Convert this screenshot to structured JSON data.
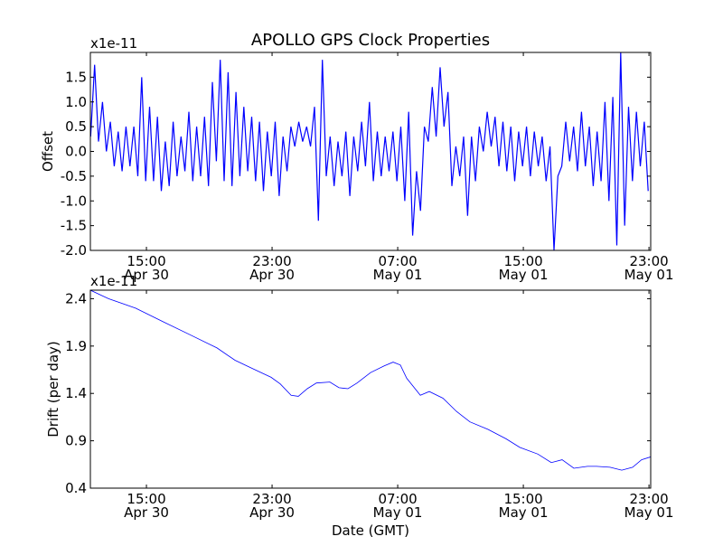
{
  "chart_data": [
    {
      "type": "line",
      "title": "APOLLO GPS Clock Properties",
      "xlabel": "",
      "ylabel": "Offset",
      "y_multiplier": "x1e-11",
      "ylim": [
        -2.0,
        2.0
      ],
      "xlim_hours_since_apr30": [
        11.43,
        47.11
      ],
      "y_ticks": [
        -2.0,
        -1.5,
        -1.0,
        -0.5,
        0.0,
        0.5,
        1.0,
        1.5
      ],
      "y_tick_labels": [
        "-2.0",
        "-1.5",
        "-1.0",
        "-0.5",
        "0.0",
        "0.5",
        "1.0",
        "1.5"
      ],
      "x_ticks_hours": [
        15,
        23,
        31,
        39,
        47
      ],
      "x_tick_labels": [
        [
          "15:00",
          "Apr 30"
        ],
        [
          "23:00",
          "Apr 30"
        ],
        [
          "07:00",
          "May 01"
        ],
        [
          "15:00",
          "May 01"
        ],
        [
          "23:00",
          "May 01"
        ]
      ],
      "color": "#0000ff",
      "series": [
        {
          "name": "Offset",
          "x_start_hours": 11.45,
          "x_step_hours": 0.25,
          "values": [
            0.3,
            1.75,
            0.2,
            1.0,
            0.0,
            0.6,
            -0.3,
            0.4,
            -0.4,
            0.5,
            -0.3,
            0.5,
            -0.5,
            1.5,
            -0.6,
            0.9,
            -0.6,
            0.7,
            -0.8,
            0.2,
            -0.7,
            0.6,
            -0.5,
            0.3,
            -0.4,
            0.8,
            -0.6,
            0.5,
            -0.5,
            0.7,
            -0.7,
            1.4,
            -0.2,
            1.85,
            -0.6,
            1.6,
            -0.7,
            1.2,
            -0.5,
            0.9,
            -0.4,
            0.7,
            -0.6,
            0.6,
            -0.8,
            0.4,
            -0.5,
            0.6,
            -0.9,
            0.3,
            -0.4,
            0.5,
            0.1,
            0.6,
            0.2,
            0.5,
            0.1,
            0.9,
            -1.4,
            1.85,
            -0.5,
            0.3,
            -0.7,
            0.2,
            -0.5,
            0.4,
            -0.9,
            0.3,
            -0.4,
            0.6,
            -0.3,
            1.0,
            -0.6,
            0.4,
            -0.5,
            0.3,
            -0.4,
            0.4,
            -0.6,
            0.5,
            -1.0,
            0.8,
            -1.7,
            -0.4,
            -1.2,
            0.5,
            0.2,
            1.3,
            0.3,
            1.7,
            0.5,
            1.2,
            -0.7,
            0.1,
            -0.5,
            0.3,
            -1.3,
            0.3,
            -0.6,
            0.5,
            0.0,
            0.8,
            0.1,
            0.7,
            -0.3,
            0.6,
            -0.4,
            0.5,
            -0.6,
            0.4,
            -0.3,
            0.5,
            -0.5,
            0.4,
            -0.3,
            0.3,
            -0.6,
            0.1,
            -2.0,
            -0.5,
            -0.3,
            0.6,
            -0.2,
            0.5,
            -0.4,
            0.8,
            -0.3,
            0.5,
            -0.7,
            0.4,
            -0.6,
            1.0,
            -1.0,
            1.1,
            -1.9,
            2.0,
            -1.5,
            0.9,
            -0.6,
            0.8,
            -0.3,
            0.6,
            -0.8
          ]
        }
      ]
    },
    {
      "type": "line",
      "title": "",
      "xlabel": "Date (GMT)",
      "ylabel": "Drift (per day)",
      "y_multiplier": "x1e-11",
      "ylim": [
        0.4,
        2.49
      ],
      "xlim_hours_since_apr30": [
        11.43,
        47.11
      ],
      "y_ticks": [
        0.4,
        0.9,
        1.4,
        1.9,
        2.4
      ],
      "y_tick_labels": [
        "0.4",
        "0.9",
        "1.4",
        "1.9",
        "2.4"
      ],
      "x_ticks_hours": [
        15,
        23,
        31,
        39,
        47
      ],
      "x_tick_labels": [
        [
          "15:00",
          "Apr 30"
        ],
        [
          "23:00",
          "Apr 30"
        ],
        [
          "07:00",
          "May 01"
        ],
        [
          "15:00",
          "May 01"
        ],
        [
          "23:00",
          "May 01"
        ]
      ],
      "color": "#0000ff",
      "series": [
        {
          "name": "Drift",
          "x_hours": [
            11.43,
            12.58,
            14.31,
            16.03,
            17.76,
            19.49,
            20.64,
            21.79,
            22.94,
            23.52,
            24.21,
            24.67,
            25.24,
            25.82,
            26.68,
            27.26,
            27.83,
            28.41,
            29.27,
            30.14,
            30.71,
            31.17,
            31.57,
            32.44,
            33.01,
            33.88,
            34.74,
            35.6,
            36.75,
            37.91,
            38.77,
            39.92,
            40.78,
            41.47,
            42.22,
            43.08,
            43.66,
            44.52,
            45.27,
            45.96,
            46.53,
            47.11
          ],
          "values": [
            2.49,
            2.4,
            2.3,
            2.16,
            2.02,
            1.88,
            1.75,
            1.66,
            1.57,
            1.5,
            1.38,
            1.37,
            1.45,
            1.51,
            1.52,
            1.46,
            1.45,
            1.51,
            1.62,
            1.69,
            1.73,
            1.7,
            1.56,
            1.38,
            1.42,
            1.35,
            1.21,
            1.1,
            1.02,
            0.92,
            0.83,
            0.76,
            0.67,
            0.7,
            0.61,
            0.63,
            0.63,
            0.62,
            0.59,
            0.62,
            0.7,
            0.73
          ]
        }
      ]
    }
  ]
}
